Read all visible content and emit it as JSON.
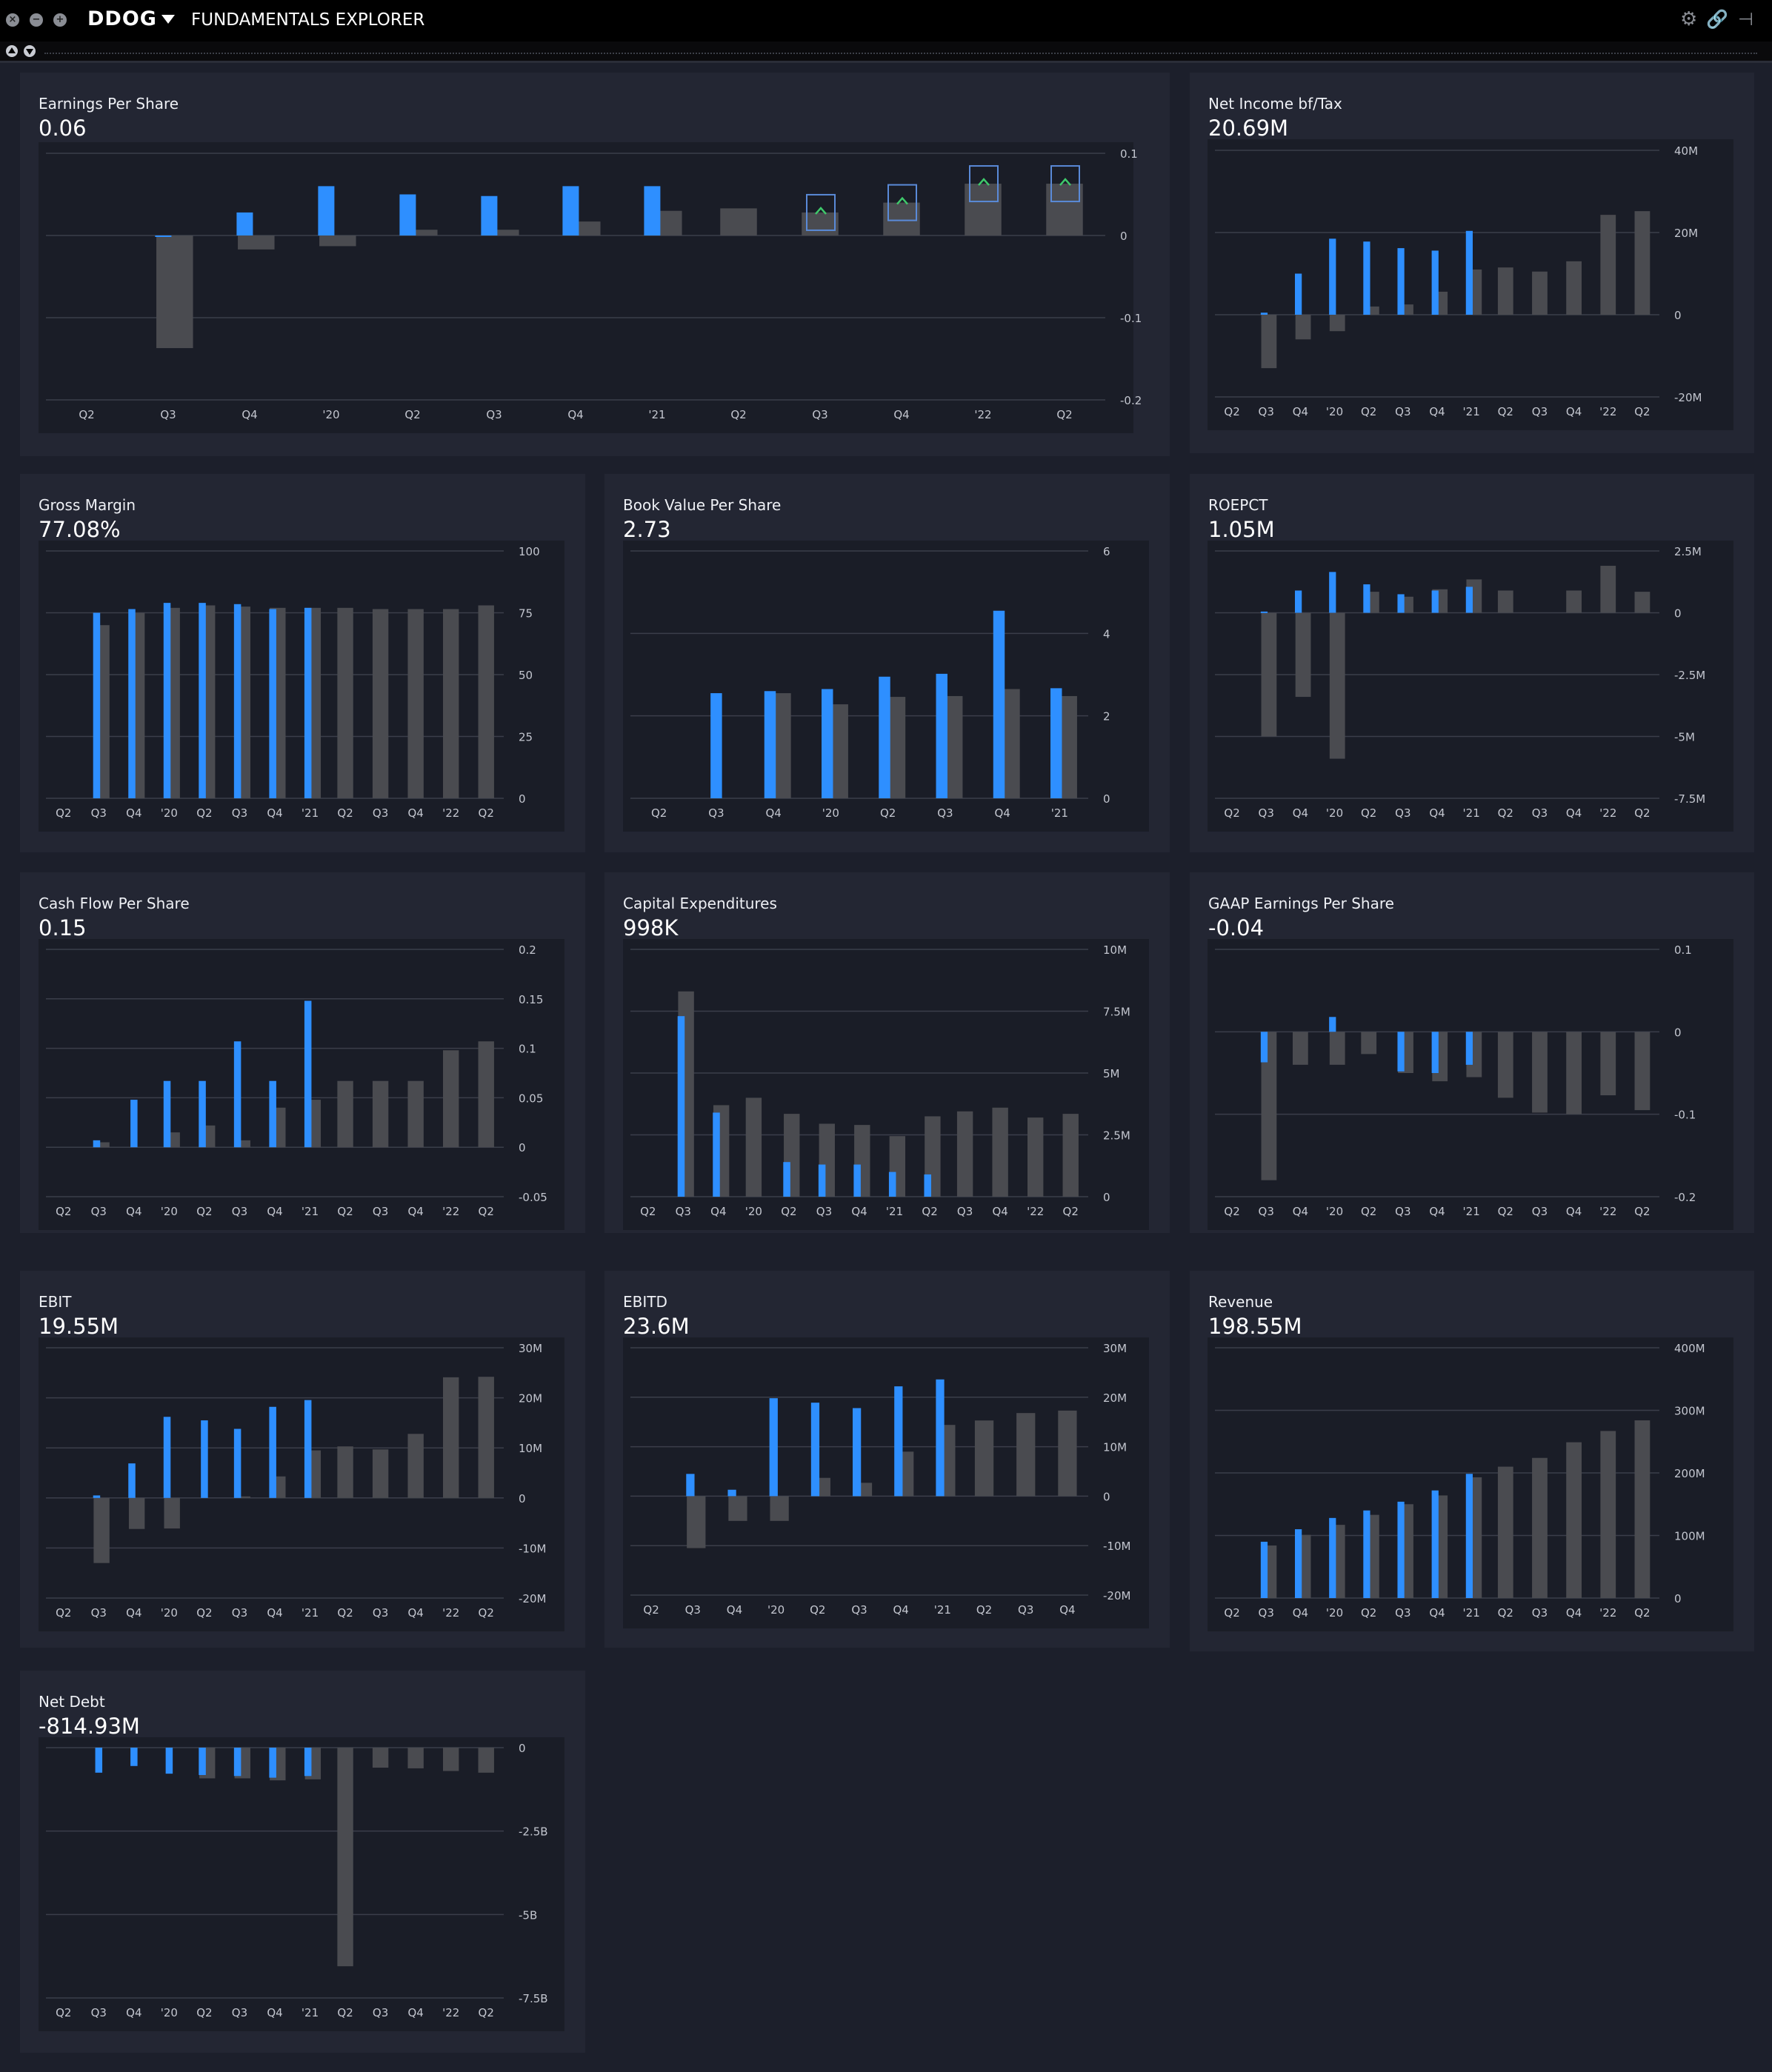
{
  "app": {
    "ticker": "DDOG",
    "title": "FUNDAMENTALS EXPLORER",
    "icons": [
      "close-icon",
      "minimize-icon",
      "maximize-icon",
      "dropdown-caret-icon",
      "settings-icon",
      "link-icon",
      "pin-icon",
      "sort-up-icon",
      "sort-down-icon"
    ]
  },
  "colors": {
    "actual": "#2e8fff",
    "estimate": "#4a4b50",
    "page_bg": "#1c1f2b",
    "panel_bg": "#232633",
    "chart_bg": "#1a1d27",
    "beat_marker": "#3fc96b",
    "marker_border": "#5a8ad8"
  },
  "panels": [
    {
      "title": "Earnings Per Share",
      "value": "0.06",
      "chart_data": {
        "type": "bar",
        "x": [
          "Q2",
          "Q3",
          "Q4",
          "'20",
          "Q2",
          "Q3",
          "Q4",
          "'21",
          "Q2",
          "Q3",
          "Q4",
          "'22",
          "Q2"
        ],
        "y_ticks": [
          "0.1",
          "0",
          "-0.1",
          "-0.2"
        ],
        "ylim": [
          -0.2,
          0.1
        ],
        "series": [
          {
            "values": [
              null,
              0,
              0.028,
              0.06,
              0.05,
              0.048,
              0.06,
              0.06,
              null,
              null,
              null,
              null,
              null
            ]
          },
          {
            "values": [
              null,
              -0.137,
              -0.017,
              -0.013,
              0.007,
              0.007,
              0.017,
              0.03,
              0.033,
              0.028,
              0.04,
              0.063,
              0.063
            ]
          }
        ],
        "beat_markers": [
          9,
          10,
          11,
          12
        ]
      }
    },
    {
      "title": "Net Income bf/Tax",
      "value": "20.69M",
      "chart_data": {
        "type": "bar",
        "x": [
          "Q2",
          "Q3",
          "Q4",
          "'20",
          "Q2",
          "Q3",
          "Q4",
          "'21",
          "Q2",
          "Q3",
          "Q4",
          "'22",
          "Q2"
        ],
        "y_ticks": [
          "40M",
          "20M",
          "0",
          "-20M"
        ],
        "ylim": [
          -20,
          40
        ],
        "series": [
          {
            "values": [
              null,
              0.5,
              10,
              18.5,
              17.8,
              16.2,
              15.6,
              20.4,
              null,
              null,
              null,
              null,
              null
            ]
          },
          {
            "values": [
              null,
              -13,
              -6,
              -4,
              2,
              2.5,
              5.6,
              11,
              11.5,
              10.5,
              13,
              24.3,
              25.2
            ]
          }
        ]
      }
    },
    {
      "title": "Gross Margin",
      "value": "77.08%",
      "chart_data": {
        "type": "bar",
        "x": [
          "Q2",
          "Q3",
          "Q4",
          "'20",
          "Q2",
          "Q3",
          "Q4",
          "'21",
          "Q2",
          "Q3",
          "Q4",
          "'22",
          "Q2"
        ],
        "y_ticks": [
          "100",
          "75",
          "50",
          "25",
          "0"
        ],
        "ylim": [
          0,
          100
        ],
        "series": [
          {
            "values": [
              null,
              75,
              76.5,
              79,
              79,
              78.5,
              76.5,
              77,
              null,
              null,
              null,
              null,
              null
            ]
          },
          {
            "values": [
              null,
              70,
              75,
              77,
              78,
              77.5,
              77,
              77,
              77,
              76.5,
              76.5,
              76.5,
              78
            ]
          }
        ]
      }
    },
    {
      "title": "Book Value Per Share",
      "value": "2.73",
      "chart_data": {
        "type": "bar",
        "x": [
          "Q2",
          "Q3",
          "Q4",
          "'20",
          "Q2",
          "Q3",
          "Q4",
          "'21"
        ],
        "y_ticks": [
          "6",
          "4",
          "2",
          "0"
        ],
        "ylim": [
          0,
          6
        ],
        "series": [
          {
            "values": [
              null,
              2.55,
              2.6,
              2.65,
              2.95,
              3.02,
              4.55,
              2.67
            ]
          },
          {
            "values": [
              null,
              null,
              2.55,
              2.28,
              2.46,
              2.48,
              2.65,
              2.48
            ]
          }
        ]
      }
    },
    {
      "title": "ROEPCT",
      "value": "1.05M",
      "chart_data": {
        "type": "bar",
        "x": [
          "Q2",
          "Q3",
          "Q4",
          "'20",
          "Q2",
          "Q3",
          "Q4",
          "'21",
          "Q2",
          "Q3",
          "Q4",
          "'22",
          "Q2"
        ],
        "y_ticks": [
          "2.5M",
          "0",
          "-2.5M",
          "-5M",
          "-7.5M"
        ],
        "ylim": [
          -7.5,
          2.5
        ],
        "series": [
          {
            "values": [
              null,
              0.05,
              0.9,
              1.65,
              1.15,
              0.75,
              0.9,
              1.05,
              null,
              null,
              null,
              null,
              null
            ]
          },
          {
            "values": [
              null,
              -5,
              -3.4,
              -5.9,
              0.85,
              0.65,
              0.95,
              1.35,
              0.9,
              null,
              0.9,
              1.9,
              0.85
            ]
          }
        ]
      }
    },
    {
      "title": "Cash Flow Per Share",
      "value": "0.15",
      "chart_data": {
        "type": "bar",
        "x": [
          "Q2",
          "Q3",
          "Q4",
          "'20",
          "Q2",
          "Q3",
          "Q4",
          "'21",
          "Q2",
          "Q3",
          "Q4",
          "'22",
          "Q2"
        ],
        "y_ticks": [
          "0.2",
          "0.15",
          "0.1",
          "0.05",
          "0",
          "-0.05"
        ],
        "ylim": [
          -0.05,
          0.2
        ],
        "series": [
          {
            "values": [
              null,
              0.007,
              0.048,
              0.067,
              0.067,
              0.107,
              0.067,
              0.148,
              null,
              null,
              null,
              null,
              null
            ]
          },
          {
            "values": [
              null,
              0.005,
              null,
              0.015,
              0.022,
              0.007,
              0.04,
              0.048,
              0.067,
              0.067,
              0.067,
              0.098,
              0.107
            ]
          }
        ]
      }
    },
    {
      "title": "Capital Expenditures",
      "value": "998K",
      "chart_data": {
        "type": "bar",
        "x": [
          "Q2",
          "Q3",
          "Q4",
          "'20",
          "Q2",
          "Q3",
          "Q4",
          "'21",
          "Q2",
          "Q3",
          "Q4",
          "'22",
          "Q2"
        ],
        "y_ticks": [
          "10M",
          "7.5M",
          "5M",
          "2.5M",
          "0"
        ],
        "ylim": [
          0,
          10
        ],
        "series": [
          {
            "values": [
              null,
              7.3,
              3.4,
              null,
              1.4,
              1.3,
              1.3,
              1.0,
              0.9,
              null,
              null,
              null,
              null
            ]
          },
          {
            "values": [
              null,
              8.3,
              3.7,
              4.0,
              3.35,
              2.95,
              2.9,
              2.45,
              3.25,
              3.45,
              3.6,
              3.2,
              3.35
            ]
          }
        ]
      }
    },
    {
      "title": "GAAP Earnings Per Share",
      "value": "-0.04",
      "chart_data": {
        "type": "bar",
        "x": [
          "Q2",
          "Q3",
          "Q4",
          "'20",
          "Q2",
          "Q3",
          "Q4",
          "'21",
          "Q2",
          "Q3",
          "Q4",
          "'22",
          "Q2"
        ],
        "y_ticks": [
          "0.1",
          "0",
          "-0.1",
          "-0.2"
        ],
        "ylim": [
          -0.2,
          0.1
        ],
        "series": [
          {
            "values": [
              null,
              -0.037,
              null,
              0.018,
              null,
              -0.048,
              -0.05,
              -0.04,
              null,
              null,
              null,
              null,
              null
            ]
          },
          {
            "values": [
              null,
              -0.18,
              -0.04,
              -0.04,
              -0.027,
              -0.05,
              -0.06,
              -0.055,
              -0.08,
              -0.098,
              -0.1,
              -0.077,
              -0.095
            ]
          }
        ]
      }
    },
    {
      "title": "EBIT",
      "value": "19.55M",
      "chart_data": {
        "type": "bar",
        "x": [
          "Q2",
          "Q3",
          "Q4",
          "'20",
          "Q2",
          "Q3",
          "Q4",
          "'21",
          "Q2",
          "Q3",
          "Q4",
          "'22",
          "Q2"
        ],
        "y_ticks": [
          "30M",
          "20M",
          "10M",
          "0",
          "-10M",
          "-20M"
        ],
        "ylim": [
          -20,
          30
        ],
        "series": [
          {
            "values": [
              null,
              0.5,
              6.9,
              16.2,
              15.5,
              13.8,
              18.2,
              19.55,
              null,
              null,
              null,
              null,
              null
            ]
          },
          {
            "values": [
              null,
              -13,
              -6.2,
              -6.1,
              null,
              0.3,
              4.3,
              9.5,
              10.3,
              9.7,
              12.8,
              24.1,
              24.2
            ]
          }
        ]
      }
    },
    {
      "title": "EBITD",
      "value": "23.6M",
      "chart_data": {
        "type": "bar",
        "x": [
          "Q2",
          "Q3",
          "Q4",
          "'20",
          "Q2",
          "Q3",
          "Q4",
          "'21",
          "Q2",
          "Q3",
          "Q4"
        ],
        "y_ticks": [
          "30M",
          "20M",
          "10M",
          "0",
          "-10M",
          "-20M"
        ],
        "ylim": [
          -20,
          30
        ],
        "series": [
          {
            "values": [
              null,
              4.5,
              1.3,
              19.8,
              18.9,
              17.8,
              22.2,
              23.6,
              null,
              null,
              null
            ]
          },
          {
            "values": [
              null,
              -10.5,
              -5,
              -5,
              3.7,
              2.7,
              9,
              14.4,
              15.3,
              16.8,
              17.3
            ]
          }
        ]
      }
    },
    {
      "title": "Revenue",
      "value": "198.55M",
      "chart_data": {
        "type": "bar",
        "x": [
          "Q2",
          "Q3",
          "Q4",
          "'20",
          "Q2",
          "Q3",
          "Q4",
          "'21",
          "Q2",
          "Q3",
          "Q4",
          "'22",
          "Q2"
        ],
        "y_ticks": [
          "400M",
          "300M",
          "200M",
          "100M",
          "0"
        ],
        "ylim": [
          0,
          400
        ],
        "series": [
          {
            "values": [
              null,
              90,
              110,
              128,
              140,
              154,
              172,
              198.5,
              null,
              null,
              null,
              null,
              null
            ]
          },
          {
            "values": [
              null,
              84,
              101,
              117,
              133,
              150,
              164,
              193,
              210,
              224,
              249,
              267,
              284
            ]
          }
        ]
      }
    },
    {
      "title": "Net Debt",
      "value": "-814.93M",
      "chart_data": {
        "type": "bar",
        "x": [
          "Q2",
          "Q3",
          "Q4",
          "'20",
          "Q2",
          "Q3",
          "Q4",
          "'21",
          "Q2",
          "Q3",
          "Q4",
          "'22",
          "Q2"
        ],
        "y_ticks": [
          "0",
          "-2.5B",
          "-5B",
          "-7.5B"
        ],
        "ylim": [
          -7.5,
          0
        ],
        "series": [
          {
            "values": [
              null,
              -0.75,
              -0.55,
              -0.78,
              -0.82,
              -0.85,
              -0.9,
              -0.85,
              null,
              null,
              null,
              null,
              null
            ]
          },
          {
            "values": [
              null,
              null,
              null,
              null,
              -0.92,
              -0.92,
              -0.98,
              -0.95,
              -6.55,
              -0.6,
              -0.62,
              -0.7,
              -0.75
            ]
          }
        ]
      }
    }
  ]
}
